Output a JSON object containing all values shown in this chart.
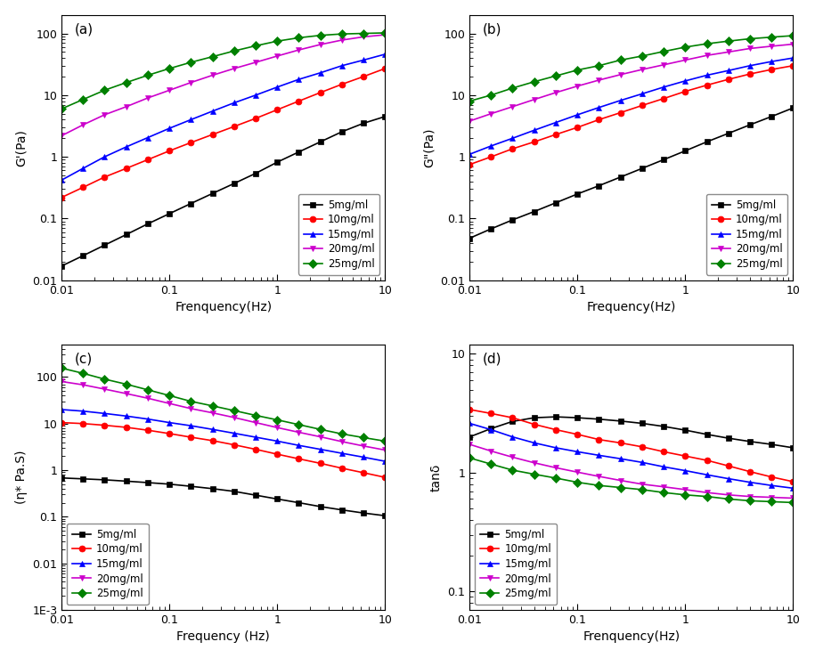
{
  "freq": [
    0.01,
    0.0158,
    0.025,
    0.0398,
    0.063,
    0.1,
    0.158,
    0.251,
    0.398,
    0.631,
    1.0,
    1.585,
    2.512,
    3.981,
    6.31,
    10.0
  ],
  "series": {
    "5mg/ml": {
      "color": "#000000",
      "marker": "s"
    },
    "10mg/ml": {
      "color": "#ff0000",
      "marker": "o"
    },
    "15mg/ml": {
      "color": "#0000ff",
      "marker": "^"
    },
    "20mg/ml": {
      "color": "#cc00cc",
      "marker": "v"
    },
    "25mg/ml": {
      "color": "#008000",
      "marker": "D"
    }
  },
  "Gp": {
    "5mg/ml": [
      0.017,
      0.025,
      0.037,
      0.055,
      0.082,
      0.12,
      0.175,
      0.255,
      0.37,
      0.54,
      0.82,
      1.2,
      1.75,
      2.55,
      3.5,
      4.5
    ],
    "10mg/ml": [
      0.22,
      0.32,
      0.47,
      0.65,
      0.9,
      1.25,
      1.7,
      2.3,
      3.1,
      4.2,
      5.8,
      8.0,
      11.0,
      15.0,
      20.0,
      27.0
    ],
    "15mg/ml": [
      0.42,
      0.65,
      1.0,
      1.45,
      2.05,
      2.9,
      4.0,
      5.5,
      7.5,
      10.0,
      13.5,
      18.0,
      23.0,
      30.0,
      37.0,
      46.0
    ],
    "20mg/ml": [
      2.2,
      3.3,
      4.8,
      6.5,
      9.0,
      12.0,
      16.0,
      21.0,
      27.0,
      34.0,
      43.0,
      54.0,
      66.0,
      78.0,
      88.0,
      95.0
    ],
    "25mg/ml": [
      6.0,
      8.5,
      12.0,
      16.0,
      21.0,
      27.0,
      34.0,
      42.0,
      52.0,
      63.0,
      75.0,
      85.0,
      93.0,
      98.0,
      100.0,
      102.0
    ]
  },
  "Gpp": {
    "5mg/ml": [
      0.048,
      0.068,
      0.095,
      0.13,
      0.18,
      0.25,
      0.34,
      0.47,
      0.65,
      0.9,
      1.25,
      1.75,
      2.4,
      3.3,
      4.5,
      6.2
    ],
    "10mg/ml": [
      0.75,
      1.0,
      1.35,
      1.75,
      2.3,
      3.0,
      4.0,
      5.2,
      6.8,
      8.8,
      11.5,
      14.5,
      18.0,
      22.0,
      26.0,
      30.0
    ],
    "15mg/ml": [
      1.1,
      1.5,
      2.0,
      2.7,
      3.6,
      4.8,
      6.3,
      8.2,
      10.5,
      13.5,
      17.0,
      21.0,
      25.0,
      30.0,
      35.0,
      40.0
    ],
    "20mg/ml": [
      3.8,
      5.0,
      6.5,
      8.5,
      11.0,
      14.0,
      17.5,
      21.5,
      26.0,
      31.0,
      37.0,
      44.0,
      50.0,
      57.0,
      62.0,
      67.0
    ],
    "25mg/ml": [
      8.0,
      10.0,
      13.0,
      16.5,
      20.5,
      25.5,
      30.0,
      37.0,
      43.0,
      51.0,
      60.0,
      68.0,
      75.0,
      82.0,
      87.0,
      92.0
    ]
  },
  "eta": {
    "5mg/ml": [
      0.68,
      0.65,
      0.62,
      0.58,
      0.54,
      0.5,
      0.45,
      0.4,
      0.35,
      0.29,
      0.24,
      0.2,
      0.165,
      0.14,
      0.12,
      0.105
    ],
    "10mg/ml": [
      10.5,
      10.0,
      9.2,
      8.3,
      7.2,
      6.1,
      5.1,
      4.3,
      3.5,
      2.8,
      2.2,
      1.75,
      1.4,
      1.1,
      0.88,
      0.7
    ],
    "15mg/ml": [
      20.0,
      18.5,
      16.5,
      14.5,
      12.5,
      10.5,
      9.0,
      7.5,
      6.2,
      5.1,
      4.2,
      3.4,
      2.8,
      2.3,
      1.9,
      1.55
    ],
    "20mg/ml": [
      80.0,
      68.0,
      55.0,
      44.0,
      35.0,
      27.0,
      21.0,
      17.0,
      13.5,
      10.5,
      8.2,
      6.5,
      5.2,
      4.1,
      3.3,
      2.7
    ],
    "25mg/ml": [
      155.0,
      120.0,
      90.0,
      70.0,
      53.0,
      40.0,
      30.0,
      24.0,
      19.0,
      15.0,
      12.0,
      9.5,
      7.5,
      6.0,
      5.0,
      4.2
    ]
  },
  "tand": {
    "5mg/ml": [
      2.0,
      2.35,
      2.7,
      2.9,
      2.95,
      2.9,
      2.82,
      2.72,
      2.6,
      2.45,
      2.28,
      2.1,
      1.95,
      1.83,
      1.73,
      1.62
    ],
    "10mg/ml": [
      3.4,
      3.15,
      2.9,
      2.55,
      2.3,
      2.1,
      1.9,
      1.78,
      1.65,
      1.5,
      1.38,
      1.27,
      1.14,
      1.02,
      0.92,
      0.84
    ],
    "15mg/ml": [
      2.6,
      2.3,
      2.0,
      1.78,
      1.62,
      1.5,
      1.4,
      1.31,
      1.22,
      1.12,
      1.04,
      0.96,
      0.89,
      0.83,
      0.78,
      0.74
    ],
    "20mg/ml": [
      1.73,
      1.52,
      1.35,
      1.21,
      1.1,
      1.01,
      0.93,
      0.86,
      0.8,
      0.76,
      0.72,
      0.68,
      0.65,
      0.63,
      0.62,
      0.61
    ],
    "25mg/ml": [
      1.33,
      1.18,
      1.05,
      0.97,
      0.9,
      0.83,
      0.78,
      0.75,
      0.72,
      0.68,
      0.65,
      0.63,
      0.6,
      0.58,
      0.57,
      0.56
    ]
  },
  "labels": [
    "5mg/ml",
    "10mg/ml",
    "15mg/ml",
    "20mg/ml",
    "25mg/ml"
  ],
  "subplot_labels": [
    "(a)",
    "(b)",
    "(c)",
    "(d)"
  ],
  "ylabels_a": "G'(Pa)",
  "ylabels_b": "G\"(Pa)",
  "ylabels_c": "(η* Pa.S)",
  "ylabels_d": "tanδ",
  "xlabel_a": "Frenquency(Hz)",
  "xlabel_b": "Frequency(Hz)",
  "xlabel_c": "Frequency (Hz)",
  "xlabel_d": "Frenquency(Hz)"
}
